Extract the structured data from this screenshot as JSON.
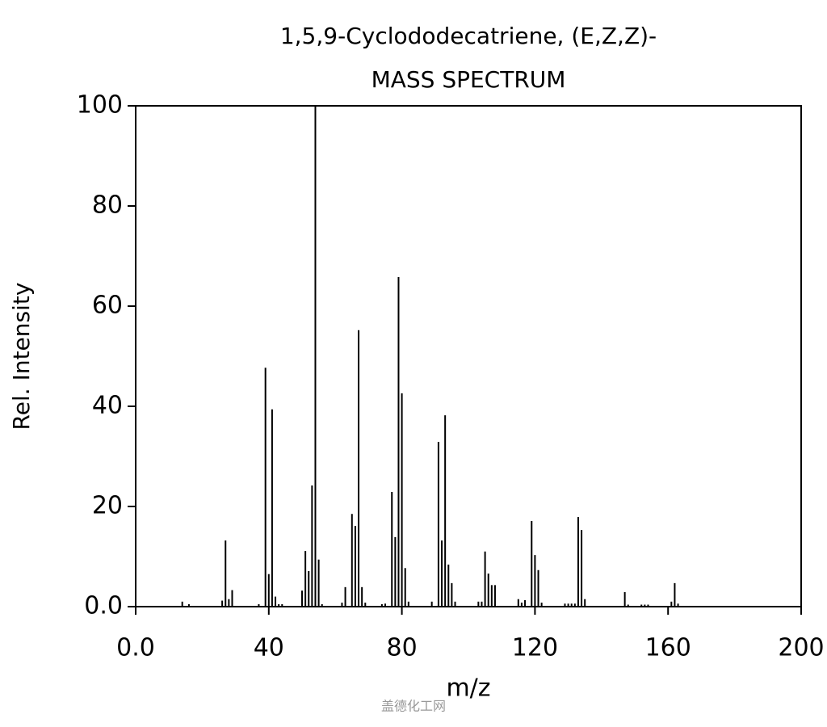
{
  "chart_data": {
    "type": "stem",
    "title": "1,5,9-Cyclododecatriene, (E,Z,Z)-",
    "subtitle": "MASS SPECTRUM",
    "x_label": "m/z",
    "y_label": "Rel. Intensity",
    "watermark": "盖德化工网",
    "color": "#000000",
    "x": [
      14,
      16,
      26,
      27,
      28,
      29,
      37,
      39,
      40,
      41,
      42,
      43,
      44,
      50,
      51,
      52,
      53,
      54,
      55,
      56,
      62,
      63,
      65,
      66,
      67,
      68,
      69,
      74,
      75,
      77,
      78,
      79,
      80,
      81,
      82,
      89,
      91,
      92,
      93,
      94,
      95,
      96,
      103,
      104,
      105,
      106,
      107,
      108,
      115,
      116,
      117,
      119,
      120,
      121,
      122,
      129,
      130,
      131,
      132,
      133,
      134,
      135,
      147,
      148,
      152,
      153,
      154,
      161,
      162,
      163
    ],
    "values": [
      1,
      0.5,
      1.2,
      13.2,
      1.5,
      3.3,
      0.5,
      47.7,
      6.5,
      39.4,
      2,
      0.5,
      0.5,
      3.2,
      11.1,
      7.1,
      24.2,
      100,
      9.4,
      0.5,
      0.8,
      3.9,
      18.5,
      16.1,
      55.2,
      3.9,
      0.8,
      0.5,
      0.6,
      22.9,
      13.9,
      65.8,
      42.6,
      7.7,
      1,
      1,
      32.9,
      13.2,
      38.2,
      8.4,
      4.7,
      1,
      1,
      1,
      11,
      6.6,
      4.3,
      4.3,
      1.5,
      0.8,
      1.3,
      17.1,
      10.3,
      7.3,
      0.8,
      0.6,
      0.6,
      0.6,
      0.6,
      17.9,
      15.3,
      1.5,
      2.9,
      0.4,
      0.4,
      0.4,
      0.4,
      1,
      4.7,
      0.6
    ],
    "xlim": [
      0,
      200
    ],
    "ylim": [
      0,
      100
    ],
    "xticks": [
      {
        "value": 0,
        "label": "0.0"
      },
      40,
      80,
      120,
      160,
      200
    ],
    "yticks": [
      {
        "value": 0,
        "label": "0.0"
      },
      20,
      40,
      60,
      80,
      100
    ]
  }
}
